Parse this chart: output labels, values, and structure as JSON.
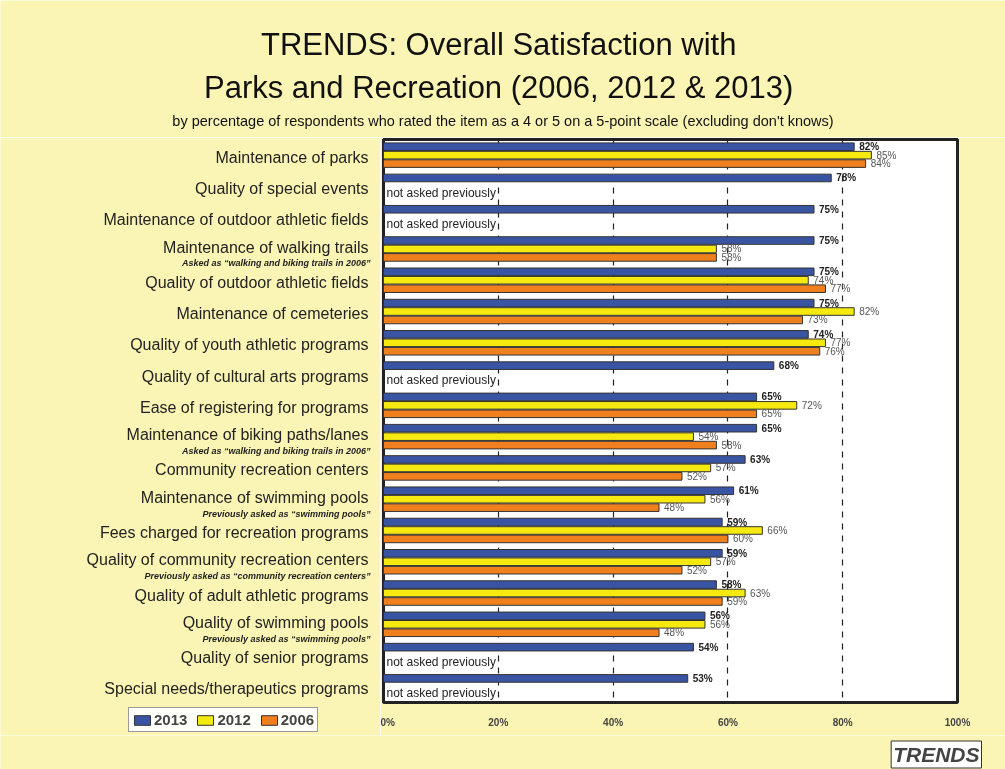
{
  "chart_data": {
    "type": "bar",
    "orientation": "horizontal",
    "title": "TRENDS:  Overall Satisfaction with\nParks and Recreation  (2006, 2012 & 2013)",
    "subtitle": "by percentage of respondents who rated the item as a 4 or 5 on a 5-point scale (excluding don't knows)",
    "categories": [
      "Maintenance of parks",
      "Quality of special events",
      "Maintenance of outdoor athletic fields",
      "Maintenance of walking trails\nAsked as “walking and biking trails in 2006”",
      "Quality of outdoor athletic fields",
      "Maintenance of cemeteries",
      "Quality of youth athletic programs",
      "Quality of cultural arts programs",
      "Ease of registering for programs",
      "Maintenance of biking paths/lanes\nAsked as “walking and biking trails in 2006”",
      "Community recreation centers",
      "Maintenance of swimming pools\nPreviously asked as “swimming pools”",
      "Fees charged for recreation programs",
      "Quality of community recreation centers\nPreviously asked as “community recreation centers”",
      "Quality of adult athletic programs",
      "Quality of swimming pools\nPreviously asked as “swimming pools”",
      "Quality of senior programs",
      "Special needs/therapeutics programs"
    ],
    "series": [
      {
        "name": "2013",
        "color": "#3a54a4",
        "values": [
          82,
          78,
          75,
          75,
          75,
          75,
          74,
          68,
          65,
          65,
          63,
          61,
          59,
          59,
          58,
          56,
          54,
          53
        ],
        "value_labels": [
          "82%",
          "78%",
          "75%",
          "75%",
          "75%",
          "75%",
          "74%",
          "68%",
          "65%",
          "65%",
          "63%",
          "61%",
          "59%",
          "59%",
          "58%",
          "56%",
          "54%",
          "53%"
        ]
      },
      {
        "name": "2012",
        "color": "#f5e90f",
        "values": [
          85,
          null,
          null,
          58,
          74,
          82,
          77,
          null,
          72,
          54,
          57,
          56,
          66,
          57,
          63,
          56,
          null,
          null
        ],
        "value_labels": [
          "85%",
          "not asked previously",
          "not asked previously",
          "58%",
          "74%",
          "82%",
          "77%",
          "not asked previously",
          "72%",
          "54%",
          "57%",
          "56%",
          "66%",
          "57%",
          "63%",
          "56%",
          "not asked previously",
          "not asked previously"
        ]
      },
      {
        "name": "2006",
        "color": "#f07f1e",
        "values": [
          84,
          null,
          null,
          58,
          77,
          73,
          76,
          null,
          65,
          58,
          52,
          48,
          60,
          52,
          59,
          48,
          null,
          null
        ],
        "value_labels": [
          "84%",
          null,
          null,
          "58%",
          "77%",
          "73%",
          "76%",
          null,
          "65%",
          "58%",
          "52%",
          "48%",
          "60%",
          "52%",
          "59%",
          "48%",
          null,
          null
        ]
      }
    ],
    "xlim": [
      0,
      100
    ],
    "xticks": [
      {
        "value": 0,
        "label": "0%"
      },
      {
        "value": 20,
        "label": "20%"
      },
      {
        "value": 40,
        "label": "40%"
      },
      {
        "value": 60,
        "label": "60%"
      },
      {
        "value": 80,
        "label": "80%"
      },
      {
        "value": 100,
        "label": "100%"
      }
    ],
    "grid": "x",
    "legend": "bottom left",
    "annotations": [
      "TRENDS"
    ]
  }
}
